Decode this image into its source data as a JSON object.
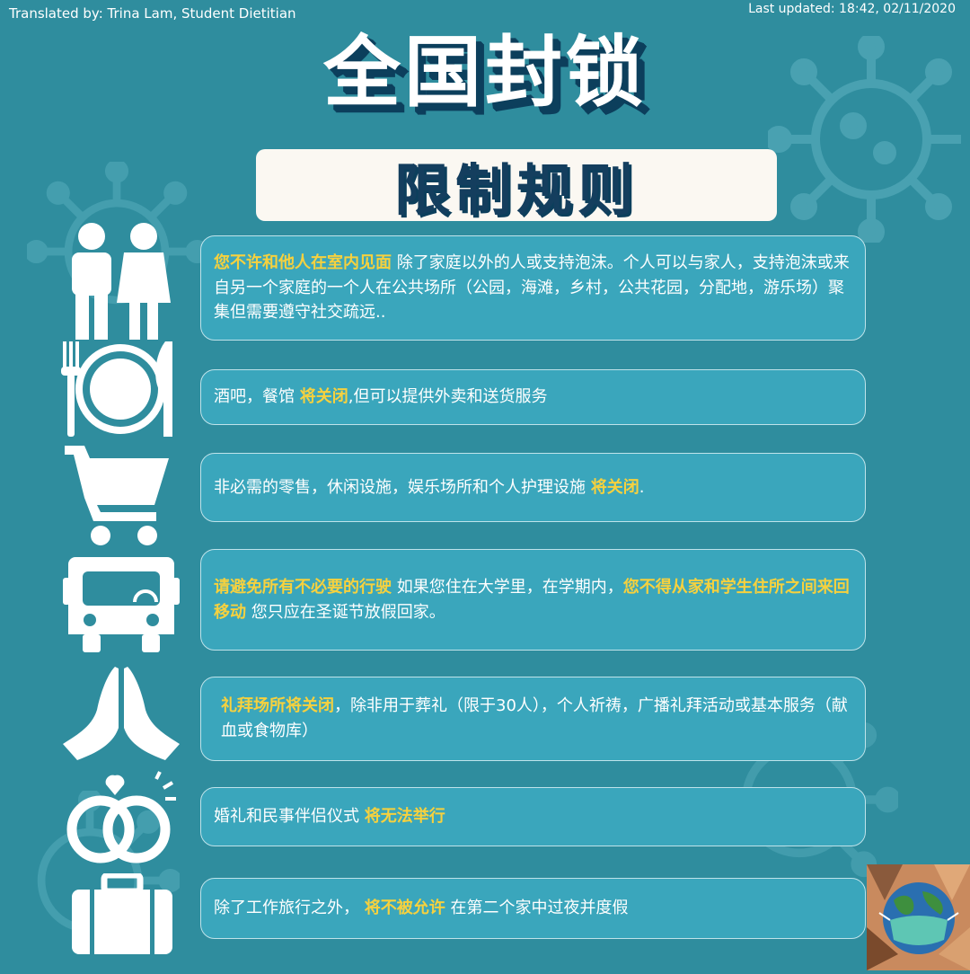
{
  "header": {
    "translated_by": "Translated by: Trina Lam, Student Dietitian",
    "last_updated": "Last updated: 18:42, 02/11/2020"
  },
  "title": "全国封锁",
  "subtitle": "限制规则",
  "colors": {
    "background": "#2f8d9e",
    "card": "#3aa6bc",
    "highlight": "#f6d13e",
    "title_shadow": "#0c3f5c"
  },
  "rules": [
    {
      "icon": "couple-icon",
      "highlight": "您不许和他人在室内见面",
      "text": " 除了家庭以外的人或支持泡沫。个人可以与家人，支持泡沫或来自另一个家庭的一个人在公共场所（公园，海滩，乡村，公共花园，分配地，游乐场）聚集但需要遵守社交疏远.."
    },
    {
      "icon": "dining-icon",
      "text_before": "酒吧，餐馆 ",
      "highlight": "将关闭",
      "text_after": ",但可以提供外卖和送货服务"
    },
    {
      "icon": "shopping-cart-icon",
      "text_before": "非必需的零售，休闲设施，娱乐场所和个人护理设施 ",
      "highlight": "将关闭",
      "text_after": "."
    },
    {
      "icon": "bus-icon",
      "highlight": "请避免所有不必要的行驶",
      "text_mid": " 如果您住在大学里，在学期内，",
      "highlight2": "您不得从家和学生住所之间来回移动",
      "text_after": " 您只应在圣诞节放假回家。"
    },
    {
      "icon": "praying-hands-icon",
      "highlight": "礼拜场所将关闭",
      "text_after": "，除非用于葬礼（限于30人），个人祈祷，广播礼拜活动或基本服务（献血或食物库）"
    },
    {
      "icon": "wedding-rings-icon",
      "text_before": "婚礼和民事伴侣仪式 ",
      "highlight": "将无法举行"
    },
    {
      "icon": "suitcase-icon",
      "text_before": "除了工作旅行之外， ",
      "highlight": "将不被允许",
      "text_after": " 在第二个家中过夜并度假"
    }
  ]
}
